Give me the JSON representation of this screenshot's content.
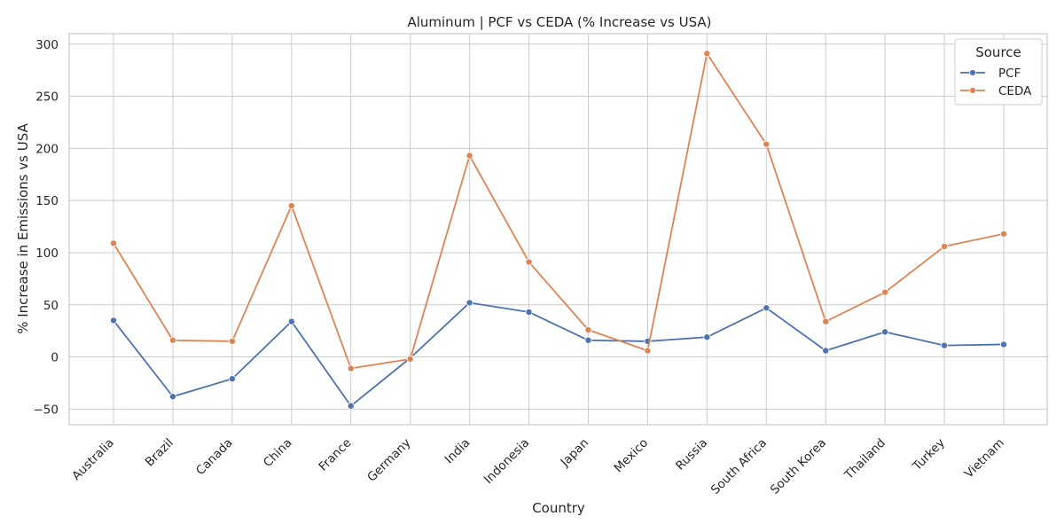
{
  "chart_data": {
    "type": "line",
    "title": "Aluminum | PCF vs CEDA (% Increase vs USA)",
    "xlabel": "Country",
    "ylabel": "% Increase in Emissions vs USA",
    "categories": [
      "Australia",
      "Brazil",
      "Canada",
      "China",
      "France",
      "Germany",
      "India",
      "Indonesia",
      "Japan",
      "Mexico",
      "Russia",
      "South Africa",
      "South Korea",
      "Thailand",
      "Turkey",
      "Vietnam"
    ],
    "ylim": [
      -65,
      310
    ],
    "yticks": [
      -50,
      0,
      50,
      100,
      150,
      200,
      250,
      300
    ],
    "ytick_labels": [
      "−50",
      "0",
      "50",
      "100",
      "150",
      "200",
      "250",
      "300"
    ],
    "grid": true,
    "legend": {
      "title": "Source",
      "placement": "top-right"
    },
    "series": [
      {
        "name": "PCF",
        "color": "#4c72b0",
        "values": [
          35,
          -38,
          -21,
          34,
          -47,
          -1,
          52,
          43,
          16,
          15,
          19,
          47,
          6,
          24,
          11,
          12
        ]
      },
      {
        "name": "CEDA",
        "color": "#dd8452",
        "values": [
          109,
          16,
          15,
          145,
          -11,
          -2,
          193,
          91,
          26,
          6,
          291,
          204,
          34,
          62,
          106,
          118
        ]
      }
    ]
  }
}
